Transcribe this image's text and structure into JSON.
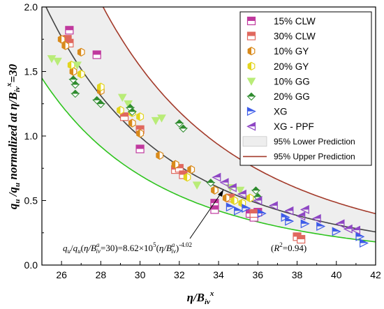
{
  "chart_data": {
    "type": "scatter",
    "xlabel": "η/B_iv^x",
    "ylabel": "q_u /q_u normalized at η/B_iv^x=30",
    "xlim": [
      25,
      42
    ],
    "ylim": [
      0,
      2.0
    ],
    "xticks": [
      "26",
      "28",
      "30",
      "32",
      "34",
      "36",
      "38",
      "40",
      "42"
    ],
    "yticks": [
      "0.0",
      "0.5",
      "1.0",
      "1.5",
      "2.0"
    ],
    "grid": false,
    "legend_position": "top-right",
    "legend": [
      "15% CLW",
      "30% CLW",
      "10% GY",
      "20% GY",
      "10% GG",
      "20% GG",
      "XG",
      "XG - PPF",
      "95% Lower Prediction",
      "95% Upper Prediction"
    ],
    "equation": {
      "main": "q_u/q_u(η/B_iv^a=30)=8.62×10^5(η/B_iv^a)^-4.02",
      "r2": "(R²=0.94)"
    },
    "fit": {
      "coefficient": 862000,
      "exponent": -4.02
    },
    "band": {
      "lower_factor": 0.7,
      "upper_factor": 1.55
    },
    "series": [
      {
        "name": "15% CLW",
        "color": "#c0399e",
        "marker": "square",
        "points": [
          [
            26.4,
            1.82
          ],
          [
            27.8,
            1.63
          ],
          [
            30.0,
            0.9
          ],
          [
            33.8,
            0.48
          ],
          [
            33.8,
            0.43
          ],
          [
            35.6,
            0.4
          ],
          [
            35.8,
            0.37
          ],
          [
            36.0,
            0.41
          ]
        ]
      },
      {
        "name": "30% CLW",
        "color": "#e0685e",
        "marker": "square",
        "points": [
          [
            26.3,
            1.75
          ],
          [
            26.4,
            1.72
          ],
          [
            29.2,
            1.15
          ],
          [
            30.0,
            1.05
          ],
          [
            31.8,
            0.74
          ],
          [
            32.0,
            0.75
          ],
          [
            32.2,
            0.7
          ],
          [
            34.6,
            0.52
          ],
          [
            35.8,
            0.4
          ],
          [
            38.0,
            0.22
          ],
          [
            38.2,
            0.2
          ]
        ]
      },
      {
        "name": "10% GY",
        "color": "#d98a1a",
        "marker": "hexagon",
        "points": [
          [
            26.0,
            1.75
          ],
          [
            26.2,
            1.7
          ],
          [
            26.6,
            1.5
          ],
          [
            27.0,
            1.65
          ],
          [
            28.0,
            1.35
          ],
          [
            29.6,
            1.1
          ],
          [
            30.0,
            1.02
          ],
          [
            31.0,
            0.85
          ],
          [
            31.8,
            0.78
          ],
          [
            32.6,
            0.74
          ],
          [
            33.8,
            0.58
          ],
          [
            34.4,
            0.52
          ]
        ]
      },
      {
        "name": "20% GY",
        "color": "#e3d51e",
        "marker": "hexagon",
        "points": [
          [
            26.5,
            1.55
          ],
          [
            27.0,
            1.48
          ],
          [
            28.0,
            1.38
          ],
          [
            29.0,
            1.2
          ],
          [
            29.6,
            1.18
          ],
          [
            30.0,
            1.15
          ],
          [
            32.4,
            0.68
          ],
          [
            34.8,
            0.5
          ],
          [
            35.2,
            0.48
          ],
          [
            35.6,
            0.52
          ]
        ]
      },
      {
        "name": "10% GG",
        "color": "#b9ec78",
        "marker": "triangle-down",
        "points": [
          [
            25.5,
            1.6
          ],
          [
            25.8,
            1.58
          ],
          [
            26.8,
            1.55
          ],
          [
            29.1,
            1.3
          ],
          [
            29.4,
            1.25
          ],
          [
            30.8,
            1.12
          ],
          [
            31.1,
            1.14
          ],
          [
            32.9,
            0.62
          ],
          [
            34.6,
            0.6
          ],
          [
            35.1,
            0.58
          ]
        ]
      },
      {
        "name": "20% GG",
        "color": "#2e8b2e",
        "marker": "triangle-up",
        "points": [
          [
            26.6,
            1.44
          ],
          [
            26.7,
            1.4
          ],
          [
            26.7,
            1.33
          ],
          [
            27.8,
            1.28
          ],
          [
            28.0,
            1.25
          ],
          [
            29.5,
            1.22
          ],
          [
            29.6,
            1.19
          ],
          [
            32.0,
            1.1
          ],
          [
            32.2,
            1.06
          ],
          [
            33.6,
            0.64
          ],
          [
            35.9,
            0.58
          ],
          [
            36.0,
            0.53
          ]
        ]
      },
      {
        "name": "XG",
        "color": "#3c5be8",
        "marker": "triangle-right",
        "points": [
          [
            34.6,
            0.45
          ],
          [
            35.0,
            0.42
          ],
          [
            35.4,
            0.44
          ],
          [
            36.2,
            0.4
          ],
          [
            37.4,
            0.37
          ],
          [
            37.6,
            0.34
          ],
          [
            38.4,
            0.32
          ],
          [
            39.2,
            0.3
          ],
          [
            40.0,
            0.26
          ],
          [
            41.2,
            0.22
          ],
          [
            41.4,
            0.17
          ]
        ]
      },
      {
        "name": "XG - PPF",
        "color": "#8e46c4",
        "marker": "triangle-left",
        "points": [
          [
            33.9,
            0.68
          ],
          [
            34.3,
            0.64
          ],
          [
            34.7,
            0.6
          ],
          [
            35.2,
            0.55
          ],
          [
            36.0,
            0.5
          ],
          [
            36.8,
            0.46
          ],
          [
            37.6,
            0.42
          ],
          [
            38.2,
            0.38
          ],
          [
            38.4,
            0.43
          ],
          [
            39.0,
            0.36
          ],
          [
            40.2,
            0.32
          ],
          [
            40.6,
            0.28
          ],
          [
            41.0,
            0.27
          ]
        ]
      }
    ]
  },
  "colors": {
    "fit_line": "#444444",
    "lower_line": "#2ec41e",
    "upper_line": "#a33a2a",
    "band_fill": "#eeeeee"
  }
}
